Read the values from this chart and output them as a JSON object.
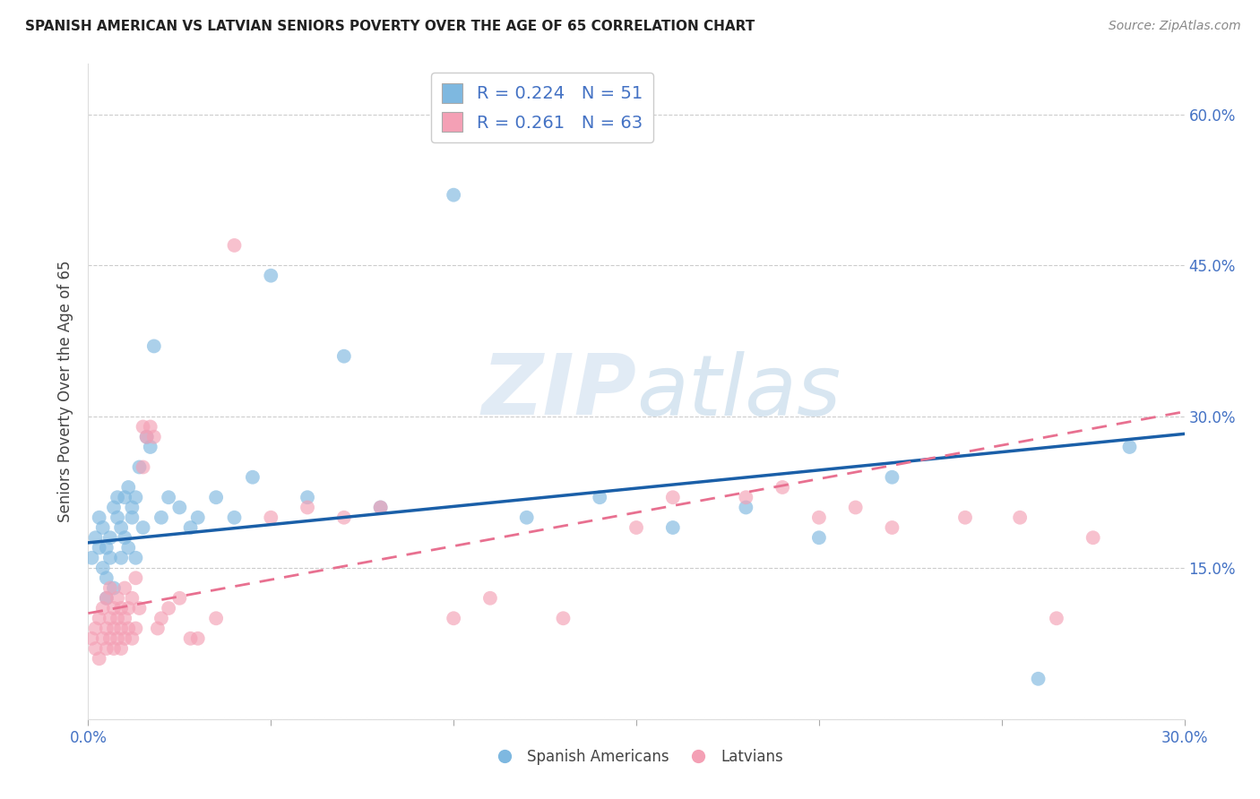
{
  "title": "SPANISH AMERICAN VS LATVIAN SENIORS POVERTY OVER THE AGE OF 65 CORRELATION CHART",
  "source": "Source: ZipAtlas.com",
  "ylabel": "Seniors Poverty Over the Age of 65",
  "xlim": [
    0.0,
    0.3
  ],
  "ylim": [
    0.0,
    0.65
  ],
  "xticks": [
    0.0,
    0.05,
    0.1,
    0.15,
    0.2,
    0.25,
    0.3
  ],
  "xtick_labels": [
    "0.0%",
    "",
    "",
    "",
    "",
    "",
    "30.0%"
  ],
  "ytick_positions": [
    0.0,
    0.15,
    0.3,
    0.45,
    0.6
  ],
  "ytick_labels": [
    "",
    "15.0%",
    "30.0%",
    "45.0%",
    "60.0%"
  ],
  "grid_color": "#cccccc",
  "background_color": "#ffffff",
  "watermark_zip": "ZIP",
  "watermark_atlas": "atlas",
  "legend_label1": "R = 0.224   N = 51",
  "legend_label2": "R = 0.261   N = 63",
  "legend_bottom_label1": "Spanish Americans",
  "legend_bottom_label2": "Latvians",
  "color_blue": "#7eb8e0",
  "color_pink": "#f4a0b5",
  "line_blue": "#1a5fa8",
  "line_pink": "#e87090",
  "spanish_x": [
    0.001,
    0.002,
    0.003,
    0.003,
    0.004,
    0.004,
    0.005,
    0.005,
    0.005,
    0.006,
    0.006,
    0.007,
    0.007,
    0.008,
    0.008,
    0.009,
    0.009,
    0.01,
    0.01,
    0.011,
    0.011,
    0.012,
    0.012,
    0.013,
    0.013,
    0.014,
    0.015,
    0.016,
    0.017,
    0.018,
    0.02,
    0.022,
    0.025,
    0.028,
    0.03,
    0.035,
    0.04,
    0.045,
    0.05,
    0.06,
    0.07,
    0.08,
    0.1,
    0.12,
    0.14,
    0.16,
    0.18,
    0.2,
    0.22,
    0.26,
    0.285
  ],
  "spanish_y": [
    0.16,
    0.18,
    0.17,
    0.2,
    0.15,
    0.19,
    0.14,
    0.17,
    0.12,
    0.18,
    0.16,
    0.21,
    0.13,
    0.2,
    0.22,
    0.19,
    0.16,
    0.18,
    0.22,
    0.17,
    0.23,
    0.2,
    0.21,
    0.22,
    0.16,
    0.25,
    0.19,
    0.28,
    0.27,
    0.37,
    0.2,
    0.22,
    0.21,
    0.19,
    0.2,
    0.22,
    0.2,
    0.24,
    0.44,
    0.22,
    0.36,
    0.21,
    0.52,
    0.2,
    0.22,
    0.19,
    0.21,
    0.18,
    0.24,
    0.04,
    0.27
  ],
  "latvian_x": [
    0.001,
    0.002,
    0.002,
    0.003,
    0.003,
    0.004,
    0.004,
    0.005,
    0.005,
    0.005,
    0.006,
    0.006,
    0.006,
    0.007,
    0.007,
    0.007,
    0.008,
    0.008,
    0.008,
    0.009,
    0.009,
    0.009,
    0.01,
    0.01,
    0.01,
    0.011,
    0.011,
    0.012,
    0.012,
    0.013,
    0.013,
    0.014,
    0.015,
    0.015,
    0.016,
    0.017,
    0.018,
    0.019,
    0.02,
    0.022,
    0.025,
    0.028,
    0.03,
    0.035,
    0.04,
    0.05,
    0.06,
    0.07,
    0.08,
    0.1,
    0.11,
    0.13,
    0.15,
    0.16,
    0.18,
    0.19,
    0.2,
    0.21,
    0.22,
    0.24,
    0.255,
    0.265,
    0.275
  ],
  "latvian_y": [
    0.08,
    0.07,
    0.09,
    0.06,
    0.1,
    0.08,
    0.11,
    0.07,
    0.09,
    0.12,
    0.08,
    0.1,
    0.13,
    0.07,
    0.09,
    0.11,
    0.08,
    0.1,
    0.12,
    0.07,
    0.09,
    0.11,
    0.08,
    0.1,
    0.13,
    0.09,
    0.11,
    0.08,
    0.12,
    0.09,
    0.14,
    0.11,
    0.25,
    0.29,
    0.28,
    0.29,
    0.28,
    0.09,
    0.1,
    0.11,
    0.12,
    0.08,
    0.08,
    0.1,
    0.47,
    0.2,
    0.21,
    0.2,
    0.21,
    0.1,
    0.12,
    0.1,
    0.19,
    0.22,
    0.22,
    0.23,
    0.2,
    0.21,
    0.19,
    0.2,
    0.2,
    0.1,
    0.18
  ],
  "sp_line_x": [
    0.0,
    0.3
  ],
  "sp_line_y": [
    0.175,
    0.283
  ],
  "lv_line_x": [
    0.0,
    0.3
  ],
  "lv_line_y": [
    0.105,
    0.305
  ]
}
